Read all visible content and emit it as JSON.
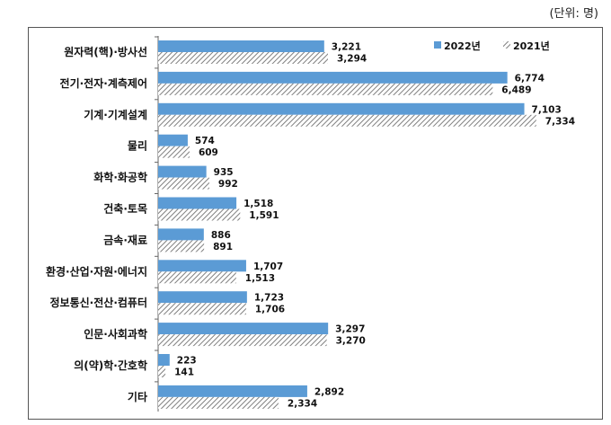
{
  "unit_label": "(단위: 명)",
  "chart_data": {
    "type": "bar",
    "orientation": "horizontal",
    "categories": [
      "원자력(핵)·방사선",
      "전기·전자·계측제어",
      "기계·기계설계",
      "물리",
      "화학·화공학",
      "건축·토목",
      "금속·재료",
      "환경·산업·자원·에너지",
      "정보통신·전산·컴퓨터",
      "인문·사회과학",
      "의(약)학·간호학",
      "기타"
    ],
    "series": [
      {
        "name": "2022년",
        "values": [
          3221,
          6774,
          7103,
          574,
          935,
          1518,
          886,
          1707,
          1723,
          3297,
          223,
          2892
        ],
        "labels": [
          "3,221",
          "6,774",
          "7,103",
          "574",
          "935",
          "1,518",
          "886",
          "1,707",
          "1,723",
          "3,297",
          "223",
          "2,892"
        ],
        "color": "#5b9bd5",
        "pattern": "solid"
      },
      {
        "name": "2021년",
        "values": [
          3294,
          6489,
          7334,
          609,
          992,
          1591,
          891,
          1513,
          1706,
          3270,
          141,
          2334
        ],
        "labels": [
          "3,294",
          "6,489",
          "7,334",
          "609",
          "992",
          "1,591",
          "891",
          "1,513",
          "1,706",
          "3,270",
          "141",
          "2,334"
        ],
        "color": "#7f7f7f",
        "pattern": "diagonal-hatch"
      }
    ],
    "xlim": [
      0,
      8000
    ],
    "legend": "top-right",
    "grid": false
  }
}
